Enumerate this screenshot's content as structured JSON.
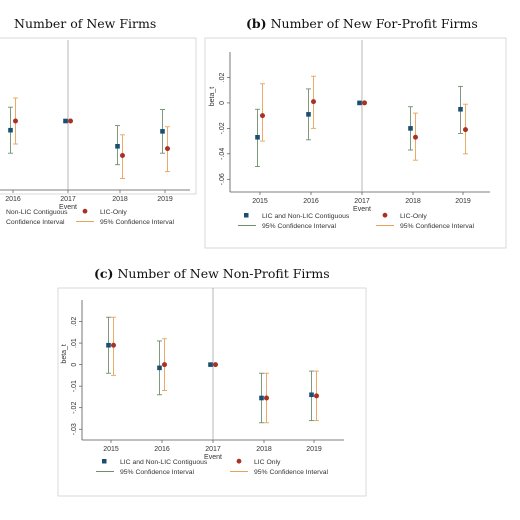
{
  "colors": {
    "series_a_marker": "#1b4f72",
    "series_b_marker": "#a93226",
    "series_a_ci": "#6f8f6f",
    "series_b_ci": "#e8a25a",
    "frame": "#555555",
    "event_line": "#999999"
  },
  "chart_data": [
    {
      "id": "a",
      "type": "scatter",
      "panel_prefix": "",
      "title": "Number of New Firms",
      "xlabel": "Event",
      "ylabel": "",
      "x_ticks": [
        "2016",
        "2017",
        "2018",
        "2019"
      ],
      "y_ticks": [],
      "ylim": [
        -0.06,
        0.06
      ],
      "event_line_at": "2017",
      "legend": {
        "placement": "bottom",
        "entries": [
          "Non-LIC Contiguous",
          "LIC-Only",
          "Confidence Interval",
          "95% Confidence Interval"
        ]
      },
      "series": [
        {
          "points": [
            {
              "x": "2016",
              "y": -0.008,
              "lo": -0.028,
              "hi": 0.012
            },
            {
              "x": "2017",
              "y": 0.0,
              "lo": 0.0,
              "hi": 0.0
            },
            {
              "x": "2018",
              "y": -0.022,
              "lo": -0.038,
              "hi": -0.004
            },
            {
              "x": "2019",
              "y": -0.009,
              "lo": -0.028,
              "hi": 0.01
            }
          ]
        },
        {
          "points": [
            {
              "x": "2016",
              "y": 0.0,
              "lo": -0.02,
              "hi": 0.02
            },
            {
              "x": "2017",
              "y": 0.0,
              "lo": 0.0,
              "hi": 0.0
            },
            {
              "x": "2018",
              "y": -0.03,
              "lo": -0.05,
              "hi": -0.012
            },
            {
              "x": "2019",
              "y": -0.024,
              "lo": -0.044,
              "hi": -0.005
            }
          ]
        }
      ]
    },
    {
      "id": "b",
      "type": "scatter",
      "panel_prefix": "(b)",
      "title": "Number of New For-Profit Firms",
      "xlabel": "Event",
      "ylabel": "beta_t",
      "x_ticks": [
        "2015",
        "2016",
        "2017",
        "2018",
        "2019"
      ],
      "y_ticks": [
        "-.06",
        "-.04",
        "-.02",
        "0",
        ".02"
      ],
      "ylim": [
        -0.07,
        0.04
      ],
      "event_line_at": "2017",
      "legend": {
        "placement": "bottom",
        "entries": [
          "LIC and Non-LIC Contiguous",
          "LIC-Only",
          "95% Confidence Interval",
          "95% Confidence Interval"
        ]
      },
      "series": [
        {
          "name": "LIC and Non-LIC Contiguous",
          "points": [
            {
              "x": "2015",
              "y": -0.027,
              "lo": -0.05,
              "hi": -0.005
            },
            {
              "x": "2016",
              "y": -0.009,
              "lo": -0.029,
              "hi": 0.011
            },
            {
              "x": "2017",
              "y": 0.0,
              "lo": 0.0,
              "hi": 0.0
            },
            {
              "x": "2018",
              "y": -0.02,
              "lo": -0.037,
              "hi": -0.003
            },
            {
              "x": "2019",
              "y": -0.005,
              "lo": -0.024,
              "hi": 0.013
            }
          ]
        },
        {
          "name": "LIC-Only",
          "points": [
            {
              "x": "2015",
              "y": -0.01,
              "lo": -0.03,
              "hi": 0.015
            },
            {
              "x": "2016",
              "y": 0.001,
              "lo": -0.02,
              "hi": 0.021
            },
            {
              "x": "2017",
              "y": 0.0,
              "lo": 0.0,
              "hi": 0.0
            },
            {
              "x": "2018",
              "y": -0.027,
              "lo": -0.045,
              "hi": -0.008
            },
            {
              "x": "2019",
              "y": -0.021,
              "lo": -0.04,
              "hi": -0.001
            }
          ]
        }
      ]
    },
    {
      "id": "c",
      "type": "scatter",
      "panel_prefix": "(c)",
      "title": "Number of New Non-Profit Firms",
      "xlabel": "Event",
      "ylabel": "beta_t",
      "x_ticks": [
        "2015",
        "2016",
        "2017",
        "2018",
        "2019"
      ],
      "y_ticks": [
        "-.03",
        "-.02",
        "-.01",
        "0",
        ".01",
        ".02"
      ],
      "ylim": [
        -0.035,
        0.03
      ],
      "event_line_at": "2017",
      "legend": {
        "placement": "bottom",
        "entries": [
          "LIC and Non-LIC Contiguous",
          "LIC Only",
          "95% Confidence Interval",
          "95% Confidence Interval"
        ]
      },
      "series": [
        {
          "name": "LIC and Non-LIC Contiguous",
          "points": [
            {
              "x": "2015",
              "y": 0.009,
              "lo": -0.004,
              "hi": 0.022
            },
            {
              "x": "2016",
              "y": -0.0015,
              "lo": -0.014,
              "hi": 0.011
            },
            {
              "x": "2017",
              "y": 0.0,
              "lo": 0.0,
              "hi": 0.0
            },
            {
              "x": "2018",
              "y": -0.0155,
              "lo": -0.027,
              "hi": -0.004
            },
            {
              "x": "2019",
              "y": -0.014,
              "lo": -0.026,
              "hi": -0.003
            }
          ]
        },
        {
          "name": "LIC Only",
          "points": [
            {
              "x": "2015",
              "y": 0.009,
              "lo": -0.005,
              "hi": 0.022
            },
            {
              "x": "2016",
              "y": 0.0,
              "lo": -0.012,
              "hi": 0.012
            },
            {
              "x": "2017",
              "y": 0.0,
              "lo": 0.0,
              "hi": 0.0
            },
            {
              "x": "2018",
              "y": -0.0155,
              "lo": -0.027,
              "hi": -0.004
            },
            {
              "x": "2019",
              "y": -0.0145,
              "lo": -0.026,
              "hi": -0.003
            }
          ]
        }
      ]
    }
  ]
}
